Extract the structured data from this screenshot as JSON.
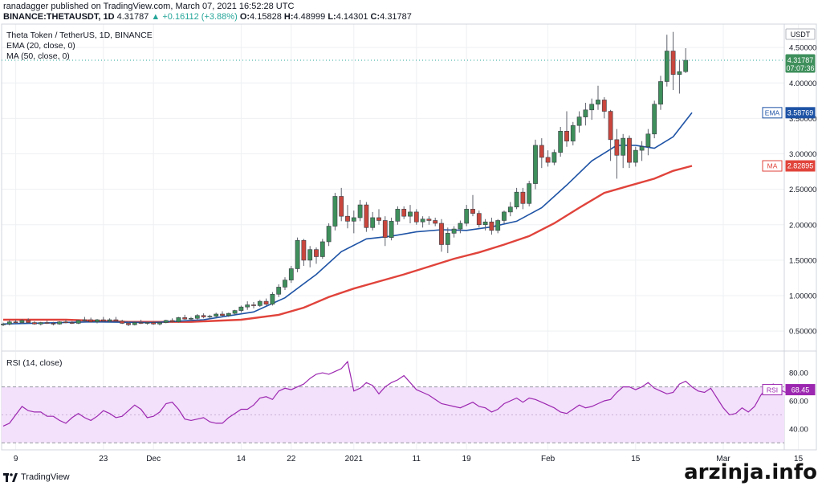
{
  "header": {
    "published": "ranadagger published on TradingView.com, March 07, 2021 16:52:28 UTC",
    "symbol": "BINANCE:THETAUSDT, 1D",
    "last": "4.31787",
    "change_arrow": "▲",
    "change": "+0.16112 (+3.88%)",
    "ohlc": [
      {
        "label": "O:",
        "value": "4.15828"
      },
      {
        "label": "H:",
        "value": "4.48999"
      },
      {
        "label": "L:",
        "value": "4.14301"
      },
      {
        "label": "C:",
        "value": "4.31787"
      }
    ]
  },
  "legend": {
    "title": "Theta Token / TetherUS, 1D, BINANCE",
    "ema": "EMA (20, close, 0)",
    "ma": "MA (50, close, 0)",
    "rsi": "RSI (14, close)"
  },
  "badges": {
    "currency": "USDT",
    "price": "4.31787",
    "countdown": "07:07:36",
    "ema_label": "EMA",
    "ema_value": "3.58769",
    "ma_label": "MA",
    "ma_value": "2.82895",
    "rsi_label": "RSI",
    "rsi_value": "68.45"
  },
  "brand": "TradingView",
  "watermark": "arzinja.info",
  "colors": {
    "up": "#26a69a",
    "up_body": "#3e8f5b",
    "down": "#c9463d",
    "ema": "#1e53a5",
    "ma": "#e0433b",
    "rsi": "#9c27b0",
    "rsi_fill": "#f3e0fb",
    "grid": "#eef0f3"
  },
  "chart_data": [
    {
      "type": "candlestick",
      "title": "Theta Token / TetherUS, 1D, BINANCE",
      "y_ticks": [
        "4.50000",
        "4.00000",
        "3.50000",
        "3.00000",
        "2.50000",
        "2.00000",
        "1.50000",
        "1.00000",
        "0.50000"
      ],
      "y_tick_values": [
        4.5,
        4.0,
        3.5,
        3.0,
        2.5,
        2.0,
        1.5,
        1.0,
        0.5
      ],
      "ylim": [
        0.23,
        4.83
      ],
      "x_tick_labels": [
        "9",
        "23",
        "Dec",
        "14",
        "22",
        "2021",
        "11",
        "19",
        "Feb",
        "15",
        "Mar",
        "15"
      ],
      "x_tick_days": [
        2,
        16,
        24,
        38,
        46,
        56,
        66,
        74,
        87,
        101,
        115,
        127
      ],
      "day0_date": "2020-11-07",
      "candles_ohlc": [
        [
          0.6,
          0.62,
          0.57,
          0.6
        ],
        [
          0.6,
          0.66,
          0.58,
          0.63
        ],
        [
          0.63,
          0.66,
          0.61,
          0.62
        ],
        [
          0.62,
          0.67,
          0.6,
          0.65
        ],
        [
          0.65,
          0.68,
          0.61,
          0.62
        ],
        [
          0.62,
          0.64,
          0.59,
          0.6
        ],
        [
          0.6,
          0.63,
          0.58,
          0.62
        ],
        [
          0.62,
          0.65,
          0.6,
          0.61
        ],
        [
          0.61,
          0.63,
          0.58,
          0.6
        ],
        [
          0.6,
          0.64,
          0.59,
          0.63
        ],
        [
          0.63,
          0.66,
          0.61,
          0.62
        ],
        [
          0.62,
          0.64,
          0.6,
          0.61
        ],
        [
          0.61,
          0.66,
          0.6,
          0.65
        ],
        [
          0.65,
          0.7,
          0.63,
          0.66
        ],
        [
          0.66,
          0.69,
          0.62,
          0.63
        ],
        [
          0.63,
          0.67,
          0.61,
          0.66
        ],
        [
          0.66,
          0.7,
          0.63,
          0.64
        ],
        [
          0.64,
          0.68,
          0.62,
          0.66
        ],
        [
          0.66,
          0.7,
          0.63,
          0.64
        ],
        [
          0.64,
          0.66,
          0.6,
          0.61
        ],
        [
          0.61,
          0.63,
          0.57,
          0.59
        ],
        [
          0.59,
          0.64,
          0.58,
          0.62
        ],
        [
          0.62,
          0.66,
          0.6,
          0.61
        ],
        [
          0.61,
          0.63,
          0.59,
          0.62
        ],
        [
          0.62,
          0.64,
          0.59,
          0.6
        ],
        [
          0.6,
          0.63,
          0.58,
          0.62
        ],
        [
          0.62,
          0.66,
          0.61,
          0.65
        ],
        [
          0.65,
          0.68,
          0.62,
          0.63
        ],
        [
          0.63,
          0.7,
          0.62,
          0.69
        ],
        [
          0.69,
          0.73,
          0.66,
          0.67
        ],
        [
          0.67,
          0.7,
          0.64,
          0.68
        ],
        [
          0.68,
          0.74,
          0.66,
          0.72
        ],
        [
          0.72,
          0.75,
          0.68,
          0.7
        ],
        [
          0.7,
          0.73,
          0.67,
          0.71
        ],
        [
          0.71,
          0.76,
          0.69,
          0.74
        ],
        [
          0.74,
          0.78,
          0.71,
          0.72
        ],
        [
          0.72,
          0.76,
          0.7,
          0.75
        ],
        [
          0.75,
          0.8,
          0.73,
          0.79
        ],
        [
          0.79,
          0.86,
          0.76,
          0.84
        ],
        [
          0.84,
          0.92,
          0.8,
          0.87
        ],
        [
          0.87,
          0.91,
          0.82,
          0.86
        ],
        [
          0.86,
          0.94,
          0.84,
          0.92
        ],
        [
          0.92,
          0.96,
          0.86,
          0.88
        ],
        [
          0.88,
          1.05,
          0.86,
          1.02
        ],
        [
          1.02,
          1.16,
          0.98,
          1.12
        ],
        [
          1.12,
          1.26,
          1.08,
          1.22
        ],
        [
          1.22,
          1.42,
          1.18,
          1.38
        ],
        [
          1.38,
          1.82,
          1.33,
          1.78
        ],
        [
          1.78,
          1.8,
          1.42,
          1.5
        ],
        [
          1.5,
          1.7,
          1.4,
          1.65
        ],
        [
          1.65,
          1.68,
          1.45,
          1.55
        ],
        [
          1.55,
          1.8,
          1.52,
          1.76
        ],
        [
          1.76,
          2.02,
          1.7,
          1.98
        ],
        [
          1.98,
          2.45,
          1.92,
          2.4
        ],
        [
          2.4,
          2.52,
          2.05,
          2.12
        ],
        [
          2.12,
          2.28,
          1.95,
          2.05
        ],
        [
          2.05,
          2.2,
          1.88,
          2.1
        ],
        [
          2.1,
          2.35,
          2.05,
          2.28
        ],
        [
          2.28,
          2.32,
          1.9,
          1.96
        ],
        [
          1.96,
          2.18,
          1.92,
          2.1
        ],
        [
          2.1,
          2.22,
          2.0,
          2.06
        ],
        [
          2.06,
          2.12,
          1.7,
          1.82
        ],
        [
          1.82,
          2.1,
          1.78,
          2.05
        ],
        [
          2.05,
          2.26,
          2.0,
          2.22
        ],
        [
          2.22,
          2.26,
          2.08,
          2.12
        ],
        [
          2.12,
          2.28,
          2.02,
          2.18
        ],
        [
          2.18,
          2.22,
          2.0,
          2.04
        ],
        [
          2.04,
          2.12,
          1.96,
          2.08
        ],
        [
          2.08,
          2.12,
          2.0,
          2.06
        ],
        [
          2.06,
          2.1,
          1.98,
          2.02
        ],
        [
          2.02,
          2.08,
          1.62,
          1.72
        ],
        [
          1.72,
          1.96,
          1.6,
          1.88
        ],
        [
          1.88,
          1.98,
          1.82,
          1.94
        ],
        [
          1.94,
          2.06,
          1.88,
          2.02
        ],
        [
          2.02,
          2.28,
          1.98,
          2.22
        ],
        [
          2.22,
          2.42,
          2.12,
          2.16
        ],
        [
          2.16,
          2.2,
          1.96,
          2.0
        ],
        [
          2.0,
          2.08,
          1.92,
          2.04
        ],
        [
          2.04,
          2.1,
          1.86,
          1.92
        ],
        [
          1.92,
          2.08,
          1.88,
          2.06
        ],
        [
          2.06,
          2.2,
          2.02,
          2.18
        ],
        [
          2.18,
          2.32,
          2.12,
          2.25
        ],
        [
          2.25,
          2.52,
          2.22,
          2.46
        ],
        [
          2.46,
          2.52,
          2.22,
          2.3
        ],
        [
          2.3,
          2.62,
          2.26,
          2.58
        ],
        [
          2.58,
          3.2,
          2.5,
          3.12
        ],
        [
          3.12,
          3.22,
          2.8,
          2.95
        ],
        [
          2.95,
          3.05,
          2.82,
          2.88
        ],
        [
          2.88,
          3.06,
          2.84,
          3.02
        ],
        [
          3.02,
          3.38,
          2.96,
          3.32
        ],
        [
          3.32,
          3.6,
          3.1,
          3.18
        ],
        [
          3.18,
          3.45,
          3.12,
          3.4
        ],
        [
          3.4,
          3.6,
          3.3,
          3.52
        ],
        [
          3.52,
          3.72,
          3.4,
          3.62
        ],
        [
          3.62,
          3.78,
          3.48,
          3.7
        ],
        [
          3.7,
          3.96,
          3.62,
          3.76
        ],
        [
          3.76,
          3.8,
          3.5,
          3.6
        ],
        [
          3.6,
          3.62,
          2.9,
          3.2
        ],
        [
          3.2,
          3.35,
          2.65,
          2.98
        ],
        [
          2.98,
          3.28,
          2.8,
          3.22
        ],
        [
          3.22,
          3.26,
          2.8,
          2.88
        ],
        [
          2.88,
          3.1,
          2.82,
          3.05
        ],
        [
          3.05,
          3.18,
          2.9,
          3.1
        ],
        [
          3.1,
          3.35,
          2.98,
          3.28
        ],
        [
          3.28,
          3.75,
          3.22,
          3.7
        ],
        [
          3.7,
          4.1,
          3.62,
          4.02
        ],
        [
          4.02,
          4.68,
          3.95,
          4.45
        ],
        [
          4.45,
          4.72,
          3.9,
          4.12
        ],
        [
          4.12,
          4.32,
          3.85,
          4.16
        ],
        [
          4.16,
          4.49,
          4.14,
          4.32
        ]
      ],
      "candle_start_day": 0,
      "ema_20": [
        [
          0,
          0.6
        ],
        [
          14,
          0.63
        ],
        [
          24,
          0.62
        ],
        [
          32,
          0.66
        ],
        [
          40,
          0.77
        ],
        [
          45,
          0.97
        ],
        [
          50,
          1.3
        ],
        [
          54,
          1.62
        ],
        [
          58,
          1.8
        ],
        [
          62,
          1.84
        ],
        [
          66,
          1.9
        ],
        [
          70,
          1.93
        ],
        [
          74,
          1.92
        ],
        [
          78,
          1.97
        ],
        [
          82,
          2.05
        ],
        [
          86,
          2.24
        ],
        [
          90,
          2.56
        ],
        [
          94,
          2.9
        ],
        [
          98,
          3.12
        ],
        [
          101,
          3.12
        ],
        [
          104,
          3.08
        ],
        [
          107,
          3.24
        ],
        [
          110,
          3.58
        ]
      ],
      "ma_50": [
        [
          0,
          0.66
        ],
        [
          10,
          0.66
        ],
        [
          20,
          0.63
        ],
        [
          30,
          0.63
        ],
        [
          38,
          0.66
        ],
        [
          44,
          0.73
        ],
        [
          48,
          0.83
        ],
        [
          52,
          0.98
        ],
        [
          56,
          1.1
        ],
        [
          60,
          1.2
        ],
        [
          64,
          1.3
        ],
        [
          68,
          1.41
        ],
        [
          72,
          1.52
        ],
        [
          76,
          1.61
        ],
        [
          80,
          1.72
        ],
        [
          84,
          1.84
        ],
        [
          88,
          2.02
        ],
        [
          92,
          2.24
        ],
        [
          96,
          2.45
        ],
        [
          100,
          2.55
        ],
        [
          104,
          2.65
        ],
        [
          107,
          2.76
        ],
        [
          110,
          2.83
        ]
      ]
    },
    {
      "type": "line",
      "title": "RSI (14, close)",
      "y_ticks": [
        "80.00",
        "60.00",
        "40.00"
      ],
      "y_tick_values": [
        80,
        60,
        40
      ],
      "ylim": [
        25,
        95
      ],
      "band": [
        30,
        70
      ],
      "x_start_day": 0,
      "values": [
        42,
        44,
        50,
        56,
        53,
        52,
        52,
        49,
        49,
        46,
        44,
        48,
        51,
        48,
        46,
        49,
        53,
        51,
        48,
        49,
        53,
        57,
        54,
        48,
        49,
        52,
        58,
        59,
        54,
        47,
        46,
        47,
        48,
        45,
        44,
        44,
        48,
        51,
        54,
        54,
        57,
        62,
        63,
        61,
        67,
        69,
        68,
        70,
        72,
        76,
        79,
        80,
        79,
        81,
        83,
        88,
        67,
        69,
        73,
        71,
        65,
        70,
        73,
        75,
        78,
        73,
        68,
        66,
        64,
        61,
        58,
        57,
        56,
        55,
        57,
        59,
        56,
        55,
        52,
        54,
        58,
        60,
        62,
        59,
        62,
        61,
        59,
        57,
        55,
        52,
        51,
        54,
        57,
        55,
        56,
        58,
        60,
        61,
        66,
        70,
        70,
        68,
        70,
        73,
        69,
        67,
        65,
        66,
        72,
        74,
        70,
        67,
        66,
        69,
        62,
        55,
        50,
        51,
        55,
        52,
        56,
        64,
        70,
        72,
        68,
        66,
        67,
        68
      ]
    }
  ]
}
